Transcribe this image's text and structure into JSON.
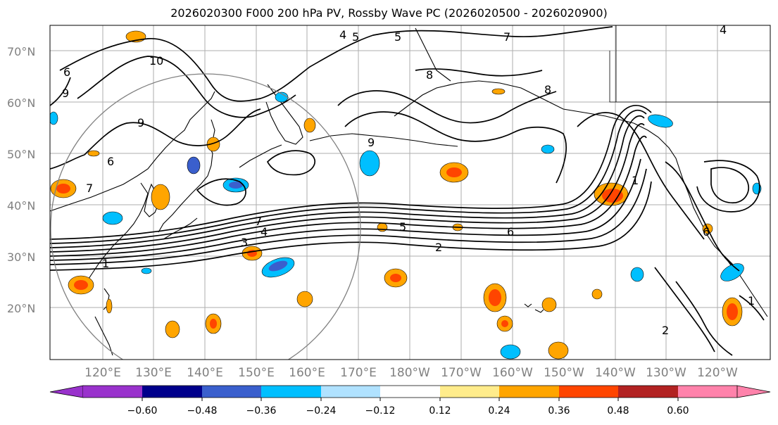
{
  "title": "2026020300 F000 200 hPa PV, Rossby Wave PC (2026020500 - 2026020900)",
  "lat_labels": [
    "70°N",
    "60°N",
    "50°N",
    "40°N",
    "30°N",
    "20°N"
  ],
  "lon_labels": [
    "120°E",
    "130°E",
    "140°E",
    "150°E",
    "160°E",
    "170°E",
    "180°W",
    "170°W",
    "160°W",
    "150°W",
    "140°W",
    "130°W",
    "120°W"
  ],
  "contour_labels": [
    "4",
    "5",
    "7",
    "10",
    "6",
    "9",
    "8",
    "6",
    "7",
    "5",
    "7",
    "4",
    "3",
    "5",
    "2",
    "6",
    "1",
    "1",
    "2",
    "1",
    "8",
    "6",
    "9",
    "9",
    "4"
  ],
  "colorbar": {
    "tick_labels": [
      "−0.60",
      "−0.48",
      "−0.36",
      "−0.24",
      "−0.12",
      "0.12",
      "0.24",
      "0.36",
      "0.48",
      "0.60"
    ],
    "colors": [
      "#9932CC",
      "#00008B",
      "#3A5FCD",
      "#00BFFF",
      "#B0E2FF",
      "#FFFFFF",
      "#FFEC8B",
      "#FFA500",
      "#FF4500",
      "#B22222",
      "#FF82AB"
    ]
  }
}
